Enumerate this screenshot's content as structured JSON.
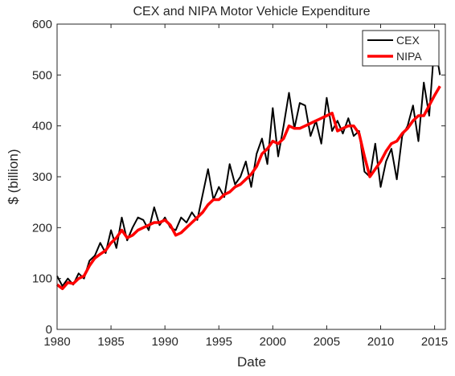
{
  "chart_data": {
    "type": "line",
    "title": "CEX and NIPA Motor Vehicle Expenditure",
    "x_label": "Date",
    "y_label": "$ (billion)",
    "x": [
      1980,
      1980.5,
      1981,
      1981.5,
      1982,
      1982.5,
      1983,
      1983.5,
      1984,
      1984.5,
      1985,
      1985.5,
      1986,
      1986.5,
      1987,
      1987.5,
      1988,
      1988.5,
      1989,
      1989.5,
      1990,
      1990.5,
      1991,
      1991.5,
      1992,
      1992.5,
      1993,
      1993.5,
      1994,
      1994.5,
      1995,
      1995.5,
      1996,
      1996.5,
      1997,
      1997.5,
      1998,
      1998.5,
      1999,
      1999.5,
      2000,
      2000.5,
      2001,
      2001.5,
      2002,
      2002.5,
      2003,
      2003.5,
      2004,
      2004.5,
      2005,
      2005.5,
      2006,
      2006.5,
      2007,
      2007.5,
      2008,
      2008.5,
      2009,
      2009.5,
      2010,
      2010.5,
      2011,
      2011.5,
      2012,
      2012.5,
      2013,
      2013.5,
      2014,
      2014.5,
      2015,
      2015.5
    ],
    "series": [
      {
        "name": "CEX",
        "color": "#000000",
        "width": 2,
        "values": [
          105,
          85,
          100,
          88,
          110,
          100,
          135,
          145,
          170,
          150,
          195,
          160,
          220,
          175,
          200,
          220,
          215,
          195,
          240,
          205,
          220,
          200,
          195,
          220,
          210,
          230,
          215,
          265,
          315,
          255,
          280,
          260,
          325,
          285,
          300,
          330,
          280,
          345,
          375,
          325,
          435,
          340,
          400,
          465,
          395,
          445,
          440,
          380,
          410,
          365,
          455,
          390,
          410,
          385,
          415,
          380,
          390,
          310,
          300,
          365,
          280,
          330,
          355,
          295,
          380,
          400,
          440,
          370,
          485,
          420,
          565,
          500
        ]
      },
      {
        "name": "NIPA",
        "color": "#ff0000",
        "width": 3.5,
        "values": [
          88,
          80,
          92,
          90,
          100,
          105,
          125,
          140,
          148,
          155,
          170,
          180,
          195,
          180,
          185,
          195,
          200,
          205,
          210,
          210,
          215,
          205,
          185,
          190,
          200,
          210,
          220,
          230,
          245,
          255,
          255,
          265,
          270,
          280,
          285,
          295,
          305,
          320,
          345,
          355,
          370,
          365,
          375,
          400,
          395,
          395,
          400,
          405,
          410,
          415,
          420,
          425,
          390,
          395,
          400,
          400,
          385,
          340,
          300,
          315,
          330,
          350,
          365,
          370,
          385,
          395,
          410,
          420,
          420,
          440,
          460,
          478
        ]
      }
    ],
    "xlim": [
      1980,
      2016
    ],
    "xticks": [
      1980,
      1985,
      1990,
      1995,
      2000,
      2005,
      2010,
      2015
    ],
    "ylim": [
      0,
      600
    ],
    "yticks": [
      0,
      100,
      200,
      300,
      400,
      500,
      600
    ],
    "legend": "upper right"
  }
}
